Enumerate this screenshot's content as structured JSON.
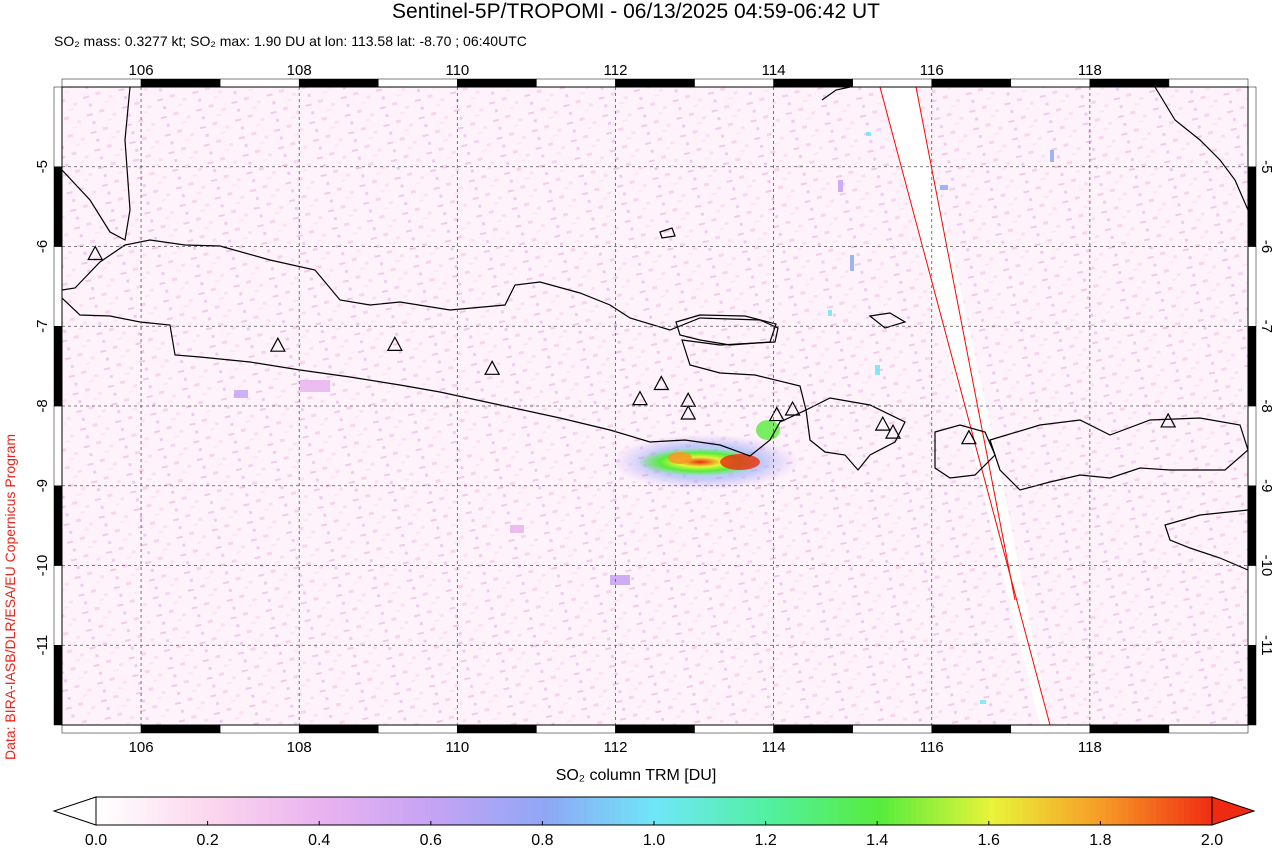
{
  "header": {
    "title": "Sentinel-5P/TROPOMI - 06/13/2025 04:59-06:42 UT",
    "subtitle": "SO₂ mass: 0.3277 kt; SO₂ max: 1.90 DU at lon: 113.58 lat: -8.70 ; 06:40UTC"
  },
  "credit": "Data: BIRA-IASB/DLR/ESA/EU Copernicus Program",
  "map": {
    "lon_range": [
      105,
      120
    ],
    "lat_range": [
      -12,
      -4
    ],
    "lon_ticks": [
      "106",
      "108",
      "110",
      "112",
      "114",
      "116",
      "118"
    ],
    "lat_ticks": [
      "-5",
      "-6",
      "-7",
      "-8",
      "-9",
      "-10",
      "-11"
    ],
    "grid": "dashed",
    "max_point": {
      "lon": 113.58,
      "lat": -8.7,
      "value_du": 1.9
    },
    "volcanoes": [
      {
        "lon": 105.42,
        "lat": -6.1
      },
      {
        "lon": 107.73,
        "lat": -7.25
      },
      {
        "lon": 109.21,
        "lat": -7.24
      },
      {
        "lon": 110.44,
        "lat": -7.54
      },
      {
        "lon": 112.31,
        "lat": -7.92
      },
      {
        "lon": 112.58,
        "lat": -7.73
      },
      {
        "lon": 112.92,
        "lat": -7.94
      },
      {
        "lon": 112.92,
        "lat": -8.1
      },
      {
        "lon": 114.04,
        "lat": -8.12
      },
      {
        "lon": 114.24,
        "lat": -8.05
      },
      {
        "lon": 115.38,
        "lat": -8.24
      },
      {
        "lon": 115.51,
        "lat": -8.34
      },
      {
        "lon": 116.47,
        "lat": -8.41
      },
      {
        "lon": 118.99,
        "lat": -8.2
      }
    ]
  },
  "colorbar": {
    "label": "SO₂ column TRM [DU]",
    "ticks": [
      "0.0",
      "0.2",
      "0.4",
      "0.6",
      "0.8",
      "1.0",
      "1.2",
      "1.4",
      "1.6",
      "1.8",
      "2.0"
    ],
    "colors": [
      "#ffffff",
      "#fcd6ee",
      "#e9b3f0",
      "#c5a3f4",
      "#8fa7f5",
      "#6fe7f7",
      "#52f0a1",
      "#57ec3c",
      "#e8f43a",
      "#f79a26",
      "#ef2a12"
    ]
  }
}
